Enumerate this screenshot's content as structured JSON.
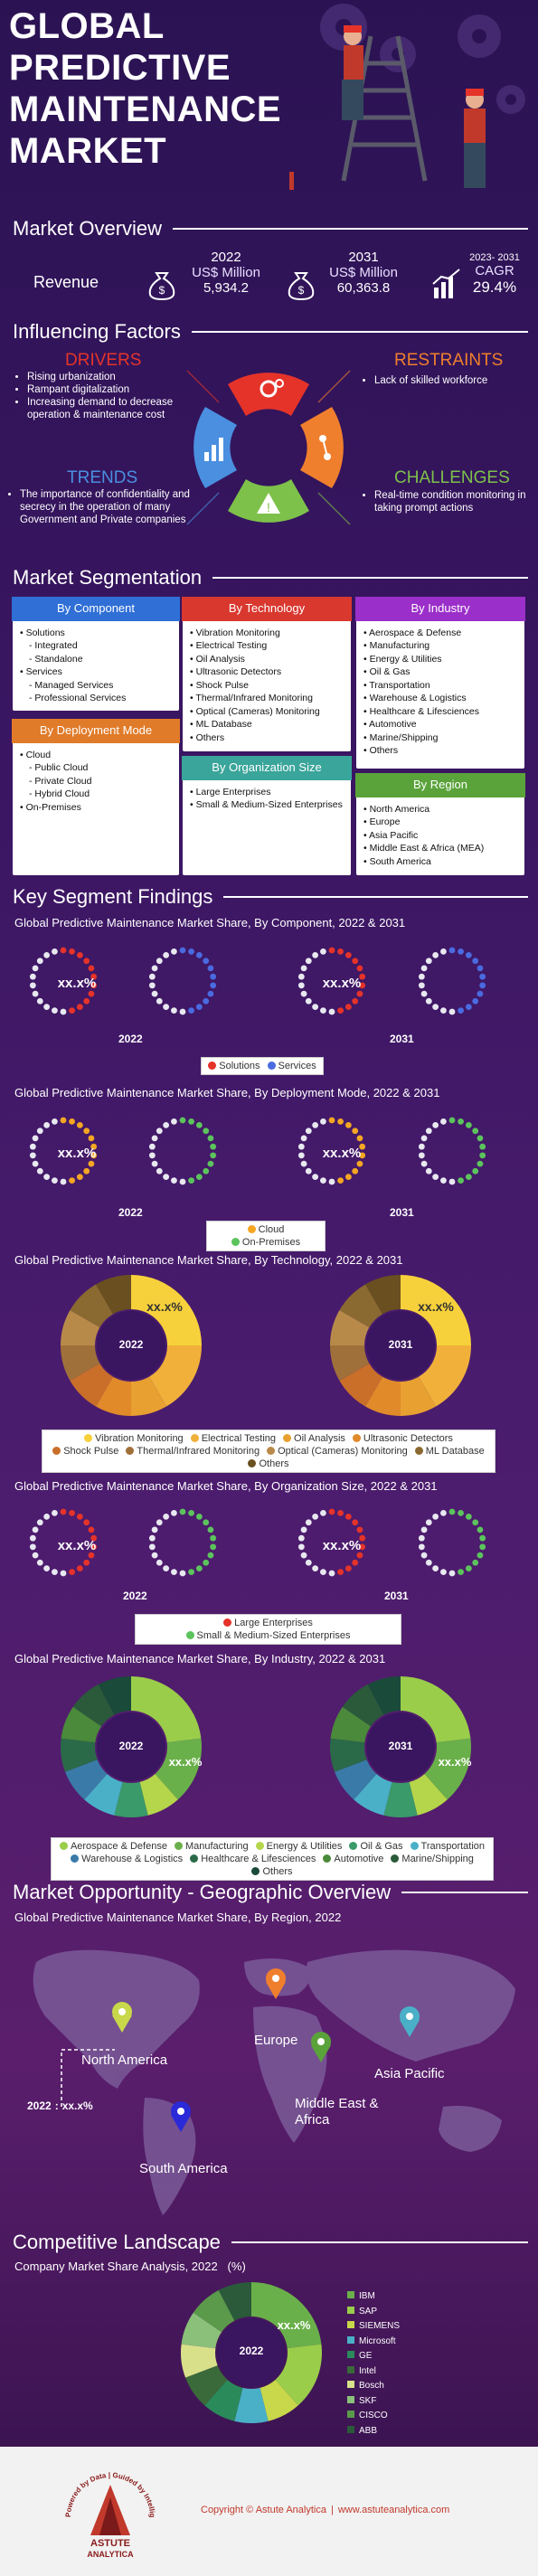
{
  "hero": {
    "title_lines": [
      "GLOBAL",
      "PREDICTIVE",
      "MAINTENANCE",
      "MARKET"
    ]
  },
  "overview": {
    "title": "Market Overview",
    "label": "Revenue",
    "y2022": "2022",
    "unit2022": "US$ Million",
    "val2022": "5,934.2",
    "y2031": "2031",
    "unit2031": "US$ Million",
    "val2031": "60,363.8",
    "cagr_years": "2023- 2031",
    "cagr_label": "CAGR",
    "cagr_value": "29.4%"
  },
  "factors": {
    "title": "Influencing Factors",
    "drivers_title": "DRIVERS",
    "drivers": [
      "Rising urbanization",
      "Rampant digitalization",
      "Increasing demand to decrease operation & maintenance cost"
    ],
    "restraints_title": "RESTRAINTS",
    "restraints": [
      "Lack of skilled workforce"
    ],
    "trends_title": "TRENDS",
    "trends": [
      "The importance of confidentiality and secrecy in the operation of many Government and Private companies"
    ],
    "challenges_title": "CHALLENGES",
    "challenges": [
      "Real-time condition monitoring in taking prompt actions"
    ],
    "colors": {
      "drivers": "#e5332a",
      "restraints": "#f07f2d",
      "trends": "#4a8fe0",
      "challenges": "#7dc14a"
    }
  },
  "segmentation": {
    "title": "Market Segmentation",
    "component": {
      "head": "By Component",
      "items": [
        [
          "Solutions",
          0
        ],
        [
          "Integrated",
          1
        ],
        [
          "Standalone",
          1
        ],
        [
          "Services",
          0
        ],
        [
          "Managed Services",
          1
        ],
        [
          "Professional Services",
          1
        ]
      ]
    },
    "deployment": {
      "head": "By Deployment Mode",
      "items": [
        [
          "Cloud",
          0
        ],
        [
          "Public Cloud",
          1
        ],
        [
          "Private Cloud",
          1
        ],
        [
          "Hybrid Cloud",
          1
        ],
        [
          "On-Premises",
          0
        ]
      ]
    },
    "technology": {
      "head": "By Technology",
      "items": [
        "Vibration Monitoring",
        "Electrical Testing",
        "Oil Analysis",
        "Ultrasonic Detectors",
        "Shock Pulse",
        "Thermal/Infrared Monitoring",
        "Optical (Cameras) Monitoring",
        "ML Database",
        "Others"
      ]
    },
    "organization": {
      "head": "By Organization Size",
      "items": [
        "Large Enterprises",
        "Small & Medium-Sized Enterprises"
      ]
    },
    "industry": {
      "head": "By Industry",
      "items": [
        "Aerospace & Defense",
        "Manufacturing",
        "Energy & Utilities",
        "Oil & Gas",
        "Transportation",
        "Warehouse & Logistics",
        "Healthcare & Lifesciences",
        "Automotive",
        "Marine/Shipping",
        "Others"
      ]
    },
    "region": {
      "head": "By Region",
      "items": [
        "North America",
        "Europe",
        "Asia Pacific",
        "Middle East & Africa (MEA)",
        "South America"
      ]
    }
  },
  "findings": {
    "title": "Key Segment Findings",
    "component_title": "Global Predictive Maintenance Market Share, By Component, 2022 & 2031",
    "deployment_title": "Global Predictive Maintenance Market Share, By Deployment Mode, 2022 & 2031",
    "technology_title": "Global Predictive Maintenance Market Share, By Technology, 2022 & 2031",
    "org_title": "Global Predictive Maintenance Market Share, By Organization Size, 2022 & 2031",
    "industry_title": "Global Predictive Maintenance Market Share, By Industry, 2022 & 2031",
    "placeholder": "xx.x%",
    "y2022": "2022",
    "y2031": "2031",
    "component_legend": [
      {
        "name": "Solutions",
        "color": "#e5332a"
      },
      {
        "name": "Services",
        "color": "#4a6ae0"
      }
    ],
    "deployment_legend": [
      {
        "name": "Cloud",
        "color": "#f5a623"
      },
      {
        "name": "On-Premises",
        "color": "#5cc45c"
      }
    ],
    "technology_legend": [
      {
        "name": "Vibration Monitoring",
        "color": "#f7d13b"
      },
      {
        "name": "Electrical Testing",
        "color": "#f0b03a"
      },
      {
        "name": "Oil Analysis",
        "color": "#e8a030"
      },
      {
        "name": "Ultrasonic Detectors",
        "color": "#e08a2a"
      },
      {
        "name": "Shock Pulse",
        "color": "#c96f2a"
      },
      {
        "name": "Thermal/Infrared Monitoring",
        "color": "#a0703a"
      },
      {
        "name": "Optical (Cameras) Monitoring",
        "color": "#b88a4a"
      },
      {
        "name": "ML Database",
        "color": "#8a6a30"
      },
      {
        "name": "Others",
        "color": "#6a5020"
      }
    ],
    "org_legend": [
      {
        "name": "Large Enterprises",
        "color": "#e5332a"
      },
      {
        "name": "Small & Medium-Sized Enterprises",
        "color": "#5cc45c"
      }
    ],
    "industry_legend": [
      {
        "name": "Aerospace & Defense",
        "color": "#9acd4a"
      },
      {
        "name": "Manufacturing",
        "color": "#6ab04a"
      },
      {
        "name": "Energy & Utilities",
        "color": "#b5d64a"
      },
      {
        "name": "Oil & Gas",
        "color": "#3a9a6a"
      },
      {
        "name": "Transportation",
        "color": "#4ab0c8"
      },
      {
        "name": "Warehouse & Logistics",
        "color": "#3a7aa8"
      },
      {
        "name": "Healthcare & Lifesciences",
        "color": "#2a6a48"
      },
      {
        "name": "Automotive",
        "color": "#4a8a3a"
      },
      {
        "name": "Marine/Shipping",
        "color": "#2a5a3a"
      },
      {
        "name": "Others",
        "color": "#1a4a3a"
      }
    ]
  },
  "geo": {
    "title": "Market Opportunity - Geographic Overview",
    "subtitle": "Global Predictive Maintenance Market Share, By Region, 2022",
    "na": "North America",
    "eu": "Europe",
    "mea": "Middle East & Africa",
    "ap": "Asia Pacific",
    "sa": "South America",
    "callout_year": "2022",
    "callout_sep": ":",
    "callout_val": "xx.x%"
  },
  "competitive": {
    "title": "Competitive Landscape",
    "subtitle": "Company Market Share Analysis, 2022   (%)",
    "center": "2022",
    "placeholder": "xx.x%",
    "companies": [
      {
        "name": "IBM",
        "color": "#6ab04a"
      },
      {
        "name": "SAP",
        "color": "#9acd4a"
      },
      {
        "name": "SIEMENS",
        "color": "#c8d84a"
      },
      {
        "name": "Microsoft",
        "color": "#4ab0c8"
      },
      {
        "name": "GE",
        "color": "#2a8a5a"
      },
      {
        "name": "Intel",
        "color": "#3a6a3a"
      },
      {
        "name": "Bosch",
        "color": "#d8e08a"
      },
      {
        "name": "SKF",
        "color": "#8ac07a"
      },
      {
        "name": "CISCO",
        "color": "#5a9a4a"
      },
      {
        "name": "ABB",
        "color": "#2a5a3a"
      }
    ]
  },
  "footer": {
    "copyright": "Copyright © Astute Analytica",
    "sep": "|",
    "site": "www.astuteanalytica.com",
    "logo_tag": "Powered by Data | Guided by Intelligence",
    "logo_name": "ASTUTE",
    "logo_sub": "ANALYTICA"
  }
}
